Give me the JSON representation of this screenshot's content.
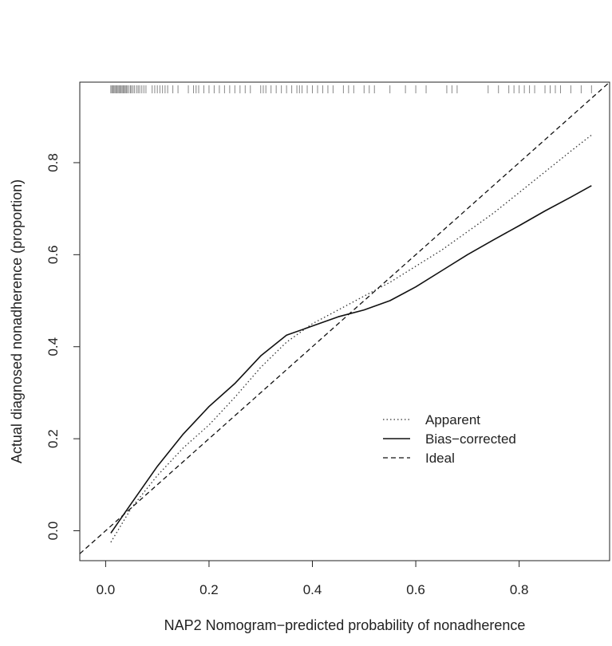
{
  "chart_data": {
    "type": "line",
    "title": "",
    "xlabel": "NAP2 Nomogram−predicted probability of nonadherence",
    "ylabel": "Actual diagnosed nonadherence (proportion)",
    "xlim": [
      -0.05,
      0.975
    ],
    "ylim": [
      -0.065,
      0.975
    ],
    "x_ticks": [
      0.0,
      0.2,
      0.4,
      0.6,
      0.8
    ],
    "x_tick_labels": [
      "0.0",
      "0.2",
      "0.4",
      "0.6",
      "0.8"
    ],
    "y_ticks": [
      0.0,
      0.2,
      0.4,
      0.6,
      0.8
    ],
    "y_tick_labels": [
      "0.0",
      "0.2",
      "0.4",
      "0.6",
      "0.8"
    ],
    "grid": false,
    "legend_position": "center-right",
    "series": [
      {
        "name": "Apparent",
        "style": "dotted",
        "color": "#333333",
        "x": [
          0.01,
          0.05,
          0.1,
          0.15,
          0.2,
          0.25,
          0.3,
          0.35,
          0.4,
          0.45,
          0.5,
          0.55,
          0.6,
          0.65,
          0.7,
          0.75,
          0.8,
          0.85,
          0.9,
          0.94
        ],
        "y": [
          -0.025,
          0.05,
          0.12,
          0.18,
          0.23,
          0.29,
          0.355,
          0.41,
          0.45,
          0.48,
          0.51,
          0.54,
          0.575,
          0.61,
          0.65,
          0.69,
          0.735,
          0.78,
          0.825,
          0.86
        ]
      },
      {
        "name": "Bias−corrected",
        "style": "solid",
        "color": "#111111",
        "x": [
          0.01,
          0.05,
          0.1,
          0.15,
          0.2,
          0.25,
          0.3,
          0.35,
          0.4,
          0.45,
          0.5,
          0.55,
          0.6,
          0.65,
          0.7,
          0.75,
          0.8,
          0.85,
          0.9,
          0.94
        ],
        "y": [
          -0.005,
          0.06,
          0.14,
          0.21,
          0.27,
          0.32,
          0.38,
          0.425,
          0.445,
          0.465,
          0.48,
          0.5,
          0.53,
          0.565,
          0.6,
          0.632,
          0.663,
          0.695,
          0.725,
          0.75
        ]
      },
      {
        "name": "Ideal",
        "style": "dashed",
        "color": "#111111",
        "x": [
          -0.05,
          0.975
        ],
        "y": [
          -0.05,
          0.975
        ]
      }
    ],
    "rug_x": [
      0.01,
      0.012,
      0.014,
      0.016,
      0.018,
      0.02,
      0.022,
      0.024,
      0.026,
      0.028,
      0.03,
      0.032,
      0.034,
      0.036,
      0.038,
      0.04,
      0.042,
      0.045,
      0.048,
      0.05,
      0.053,
      0.056,
      0.06,
      0.063,
      0.066,
      0.07,
      0.074,
      0.078,
      0.09,
      0.095,
      0.1,
      0.105,
      0.11,
      0.115,
      0.12,
      0.13,
      0.14,
      0.16,
      0.17,
      0.175,
      0.18,
      0.19,
      0.2,
      0.21,
      0.22,
      0.23,
      0.24,
      0.25,
      0.26,
      0.27,
      0.28,
      0.3,
      0.305,
      0.31,
      0.32,
      0.33,
      0.34,
      0.35,
      0.36,
      0.37,
      0.375,
      0.38,
      0.39,
      0.4,
      0.41,
      0.42,
      0.43,
      0.44,
      0.46,
      0.47,
      0.48,
      0.5,
      0.51,
      0.52,
      0.55,
      0.58,
      0.6,
      0.62,
      0.66,
      0.67,
      0.68,
      0.74,
      0.76,
      0.78,
      0.79,
      0.8,
      0.81,
      0.82,
      0.83,
      0.85,
      0.86,
      0.87,
      0.88,
      0.9,
      0.92,
      0.94
    ]
  }
}
